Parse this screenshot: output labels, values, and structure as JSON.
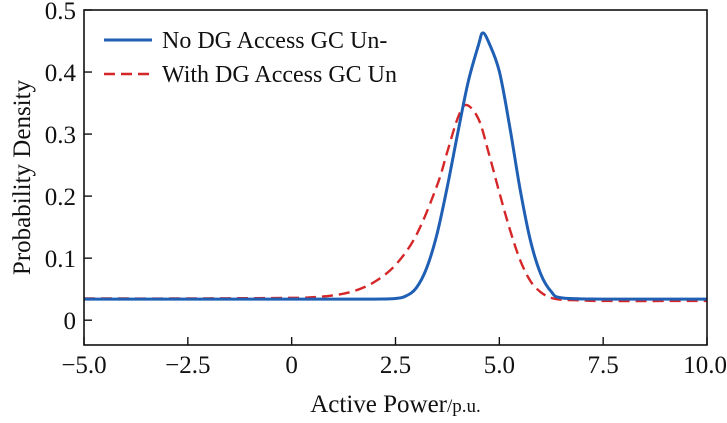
{
  "chart_data": {
    "type": "line",
    "title": "",
    "xlabel": "Active Power",
    "xlabel_unit": "/p.u.",
    "ylabel": "Probability Density",
    "xlim": [
      -5.0,
      10.0
    ],
    "ylim": [
      -0.04,
      0.5
    ],
    "x_ticks": [
      -5.0,
      -2.5,
      0,
      2.5,
      5.0,
      7.5,
      10.0
    ],
    "x_tick_labels": [
      "−5.0",
      "−2.5",
      "0",
      "2.5",
      "5.0",
      "7.5",
      "10.0"
    ],
    "y_ticks": [
      0,
      0.1,
      0.2,
      0.3,
      0.4,
      0.5
    ],
    "y_tick_labels": [
      "0",
      "0.1",
      "0.2",
      "0.3",
      "0.4",
      "0.5"
    ],
    "grid": false,
    "legend_position": "top-left",
    "series": [
      {
        "name": "No DG Access GC Un-",
        "color": "#1f5fb4",
        "line_style": "solid",
        "x": [
          -5.0,
          -2.5,
          0.0,
          2.0,
          2.5,
          2.75,
          3.0,
          3.25,
          3.5,
          3.75,
          4.0,
          4.25,
          4.5,
          4.6,
          4.75,
          5.0,
          5.25,
          5.5,
          5.75,
          6.0,
          6.25,
          6.5,
          7.5,
          10.0
        ],
        "values": [
          0.034,
          0.034,
          0.034,
          0.034,
          0.035,
          0.039,
          0.052,
          0.084,
          0.139,
          0.216,
          0.302,
          0.384,
          0.444,
          0.463,
          0.447,
          0.401,
          0.312,
          0.211,
          0.128,
          0.074,
          0.046,
          0.036,
          0.034,
          0.034
        ]
      },
      {
        "name": "With DG Access GC Un",
        "color": "#d62728",
        "line_style": "dashed",
        "x": [
          -5.0,
          -2.5,
          0.0,
          0.5,
          1.0,
          1.5,
          2.0,
          2.5,
          3.0,
          3.5,
          3.75,
          4.0,
          4.2,
          4.5,
          4.75,
          5.0,
          5.25,
          5.5,
          5.75,
          6.0,
          6.25,
          6.5,
          7.0,
          7.5,
          10.0
        ],
        "values": [
          0.035,
          0.035,
          0.036,
          0.037,
          0.04,
          0.047,
          0.062,
          0.089,
          0.137,
          0.217,
          0.272,
          0.326,
          0.347,
          0.324,
          0.268,
          0.206,
          0.147,
          0.097,
          0.063,
          0.045,
          0.036,
          0.033,
          0.032,
          0.031,
          0.031
        ]
      }
    ]
  }
}
